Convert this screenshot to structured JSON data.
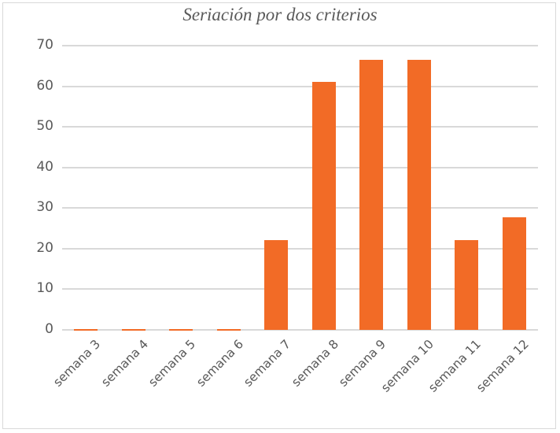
{
  "chart_data": {
    "type": "bar",
    "title": "Seriación por dos criterios",
    "xlabel": "",
    "ylabel": "",
    "categories": [
      "semana 3",
      "semana 4",
      "semana 5",
      "semana 6",
      "semana 7",
      "semana 8",
      "semana 9",
      "semana 10",
      "semana 11",
      "semana 12"
    ],
    "values": [
      0,
      0,
      0,
      0,
      22.2,
      61.1,
      66.7,
      66.7,
      22.2,
      27.8
    ],
    "ylim": [
      0,
      70
    ],
    "yticks": [
      0,
      10,
      20,
      30,
      40,
      50,
      60,
      70
    ],
    "grid": true,
    "legend": null,
    "bar_color": "#F26B26"
  }
}
